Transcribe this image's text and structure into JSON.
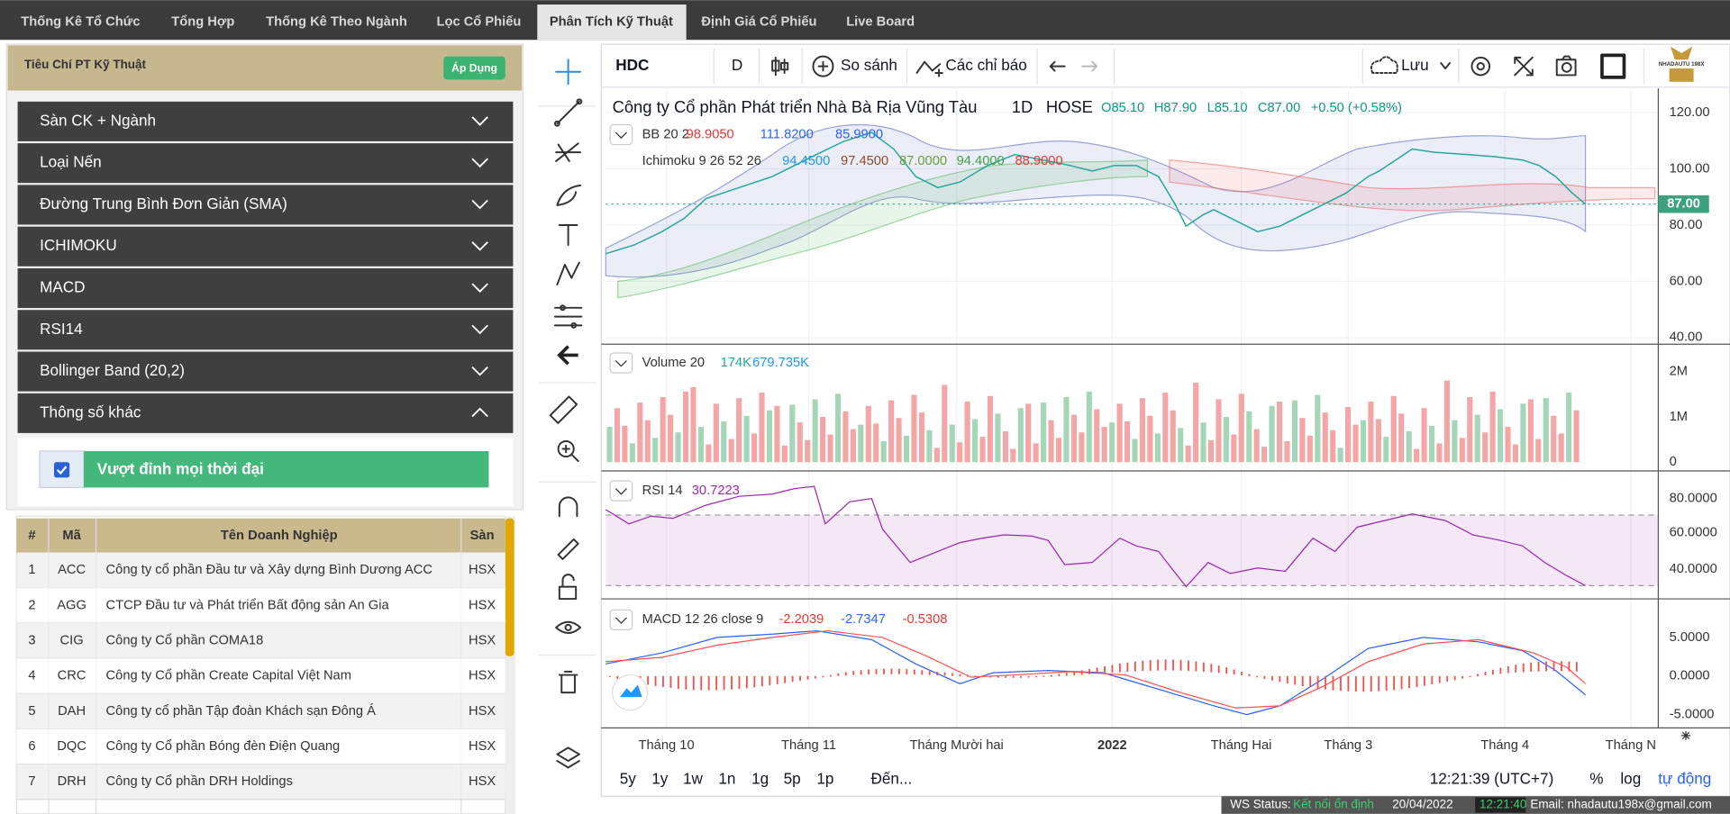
{
  "tabs": [
    "Thống Kê Tổ Chức",
    "Tổng Hợp",
    "Thống Kê Theo Ngành",
    "Lọc Cổ Phiếu",
    "Phân Tích Kỹ Thuật",
    "Định Giá Cổ Phiếu",
    "Live Board"
  ],
  "filter_panel": {
    "title": "Tiêu Chí PT Kỹ Thuật",
    "apply_button": "Áp Dụng",
    "sections": [
      "Sàn CK + Ngành",
      "Loại Nến",
      "Đường Trung Bình Đơn Giản (SMA)",
      "ICHIMOKU",
      "MACD",
      "RSI14",
      "Bollinger Band (20,2)",
      "Thông số khác"
    ],
    "checkbox_label": "Vượt đỉnh mọi thời đại"
  },
  "results_table": {
    "headers": [
      "#",
      "Mã",
      "Tên Doanh Nghiệp",
      "Sàn"
    ],
    "rows": [
      [
        1,
        "ACC",
        "Công ty cổ phần Đầu tư và Xây dựng Bình Dương ACC",
        "HSX"
      ],
      [
        2,
        "AGG",
        "CTCP Đầu tư và Phát triển Bất động sản An Gia",
        "HSX"
      ],
      [
        3,
        "CIG",
        "Công ty Cổ phần COMA18",
        "HSX"
      ],
      [
        4,
        "CRC",
        "Công ty Cổ phần Create Capital Việt Nam",
        "HSX"
      ],
      [
        5,
        "DAH",
        "Công ty cổ phần Tập đoàn Khách sạn Đông Á",
        "HSX"
      ],
      [
        6,
        "DQC",
        "Công ty Cổ phần Bóng đèn Điện Quang",
        "HSX"
      ],
      [
        7,
        "DRH",
        "Công ty Cổ phần DRH Holdings",
        "HSX"
      ]
    ]
  },
  "chart_toolbar": {
    "symbol": "HDC",
    "interval": "D",
    "compare": "So sánh",
    "indicators": "Các chỉ báo",
    "save": "Lưu",
    "logo": "NHADAUTU 198X"
  },
  "chart_legend": {
    "company": "Công ty Cổ phần Phát triển Nhà Bà Rịa Vũng Tàu",
    "interval": "1D",
    "exchange": "HOSE",
    "ohlc": [
      "O85.10",
      "H87.90",
      "L85.10",
      "C87.00",
      "+0.50 (+0.58%)"
    ],
    "bb": {
      "label": "BB 20 2",
      "values": [
        "98.9050",
        "111.8200",
        "85.9900"
      ]
    },
    "ichimoku": {
      "label": "Ichimoku 9 26 52 26",
      "values": [
        "94.4500",
        "97.4500",
        "87.0000",
        "94.4000",
        "88.9000"
      ]
    },
    "volume": {
      "label": "Volume 20",
      "values": [
        "174K",
        "679.735K"
      ]
    },
    "rsi": {
      "label": "RSI 14",
      "values": [
        "30.7223"
      ]
    },
    "macd": {
      "label": "MACD 12 26 close 9",
      "values": [
        "-2.2039",
        "-2.7347",
        "-0.5308"
      ]
    }
  },
  "price_axis": [
    "120.00",
    "100.00",
    "80.00",
    "60.00",
    "40.00"
  ],
  "last_price": "87.00",
  "volume_axis": [
    "2M",
    "1M",
    "0"
  ],
  "rsi_axis": [
    "80.0000",
    "60.0000",
    "40.0000"
  ],
  "macd_axis": [
    "5.0000",
    "0.0000",
    "-5.0000"
  ],
  "time_axis": [
    "Tháng 10",
    "Tháng 11",
    "Tháng Mười hai",
    "2022",
    "Tháng Hai",
    "Tháng 3",
    "Tháng 4",
    "Tháng N"
  ],
  "range_buttons": [
    "5y",
    "1y",
    "1w",
    "1n",
    "1g",
    "5p",
    "1p",
    "Đến..."
  ],
  "clock": "12:21:39 (UTC+7)",
  "scale_options": [
    "%",
    "log",
    "tự động"
  ],
  "status_bar": {
    "label": "WS Status:",
    "state": "Kết nối ổn định",
    "date": "20/04/2022",
    "time": "12:21:40",
    "email": "Email: nhadautu198x@gmail.com"
  }
}
